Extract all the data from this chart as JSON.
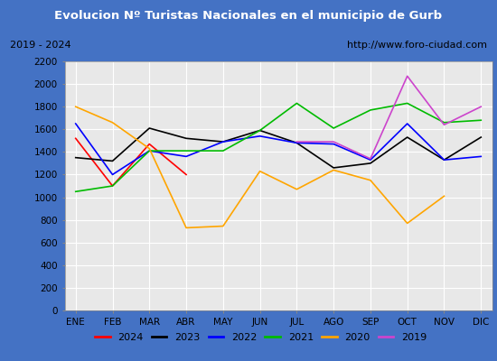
{
  "title": "Evolucion Nº Turistas Nacionales en el municipio de Gurb",
  "subtitle_left": "2019 - 2024",
  "subtitle_right": "http://www.foro-ciudad.com",
  "months": [
    "ENE",
    "FEB",
    "MAR",
    "ABR",
    "MAY",
    "JUN",
    "JUL",
    "AGO",
    "SEP",
    "OCT",
    "NOV",
    "DIC"
  ],
  "series": {
    "2024": {
      "color": "#ff0000",
      "values": [
        1520,
        1100,
        1470,
        1200,
        null,
        null,
        null,
        null,
        null,
        null,
        null,
        null
      ]
    },
    "2023": {
      "color": "#000000",
      "values": [
        1350,
        1320,
        1610,
        1520,
        1490,
        1590,
        1480,
        1260,
        1300,
        1530,
        1330,
        1530
      ]
    },
    "2022": {
      "color": "#0000ff",
      "values": [
        1650,
        1200,
        1410,
        1360,
        1490,
        1540,
        1480,
        1470,
        1330,
        1650,
        1330,
        1360
      ]
    },
    "2021": {
      "color": "#00bb00",
      "values": [
        1050,
        1100,
        1410,
        1410,
        1410,
        1590,
        1830,
        1610,
        1770,
        1830,
        1660,
        1680
      ]
    },
    "2020": {
      "color": "#ffa500",
      "values": [
        1800,
        1660,
        1430,
        730,
        745,
        1230,
        1070,
        1240,
        1150,
        770,
        1010,
        null
      ]
    },
    "2019": {
      "color": "#cc44cc",
      "values": [
        null,
        null,
        null,
        null,
        null,
        null,
        1490,
        1490,
        1340,
        2070,
        1640,
        1800
      ]
    }
  },
  "ylim": [
    0,
    2200
  ],
  "yticks": [
    0,
    200,
    400,
    600,
    800,
    1000,
    1200,
    1400,
    1600,
    1800,
    2000,
    2200
  ],
  "title_bgcolor": "#4472c4",
  "title_color": "#ffffff",
  "plot_bgcolor": "#e8e8e8",
  "border_color": "#4472c4",
  "subtitle_bgcolor": "#e0e0e0",
  "legend_order": [
    "2024",
    "2023",
    "2022",
    "2021",
    "2020",
    "2019"
  ]
}
